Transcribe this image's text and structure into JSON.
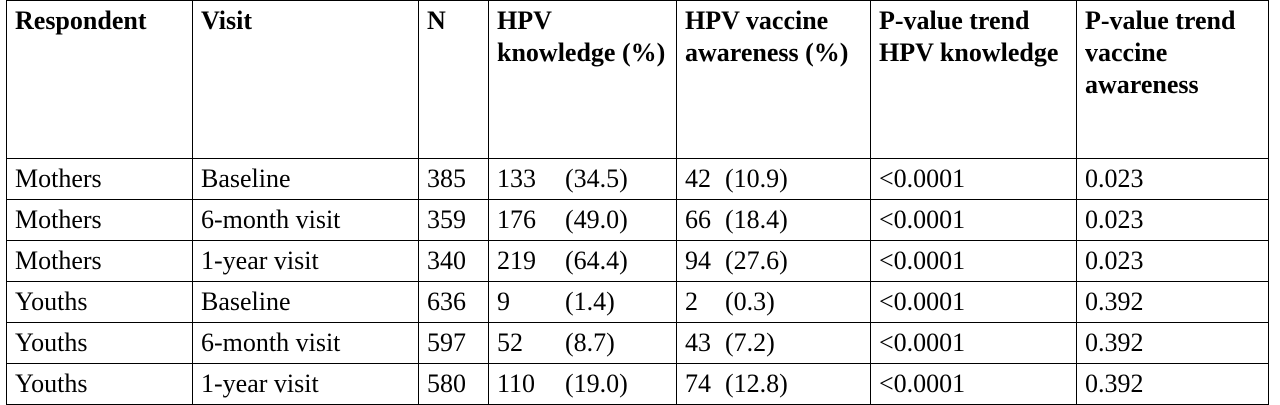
{
  "table": {
    "headers": [
      "Respondent",
      "Visit",
      "N",
      "HPV knowledge (%)",
      "HPV vaccine awareness (%)",
      "P-value trend HPV knowledge",
      "P-value trend vaccine awareness"
    ],
    "rows": [
      {
        "respondent": "Mothers",
        "visit": "Baseline",
        "n": "385",
        "knowledge_n": "133",
        "knowledge_pct": "(34.5)",
        "awareness_n": "42",
        "awareness_pct": "(10.9)",
        "p_knowledge": "<0.0001",
        "p_awareness": "0.023"
      },
      {
        "respondent": "Mothers",
        "visit": "6-month visit",
        "n": "359",
        "knowledge_n": "176",
        "knowledge_pct": "(49.0)",
        "awareness_n": "66",
        "awareness_pct": "(18.4)",
        "p_knowledge": "<0.0001",
        "p_awareness": "0.023"
      },
      {
        "respondent": "Mothers",
        "visit": "1-year visit",
        "n": "340",
        "knowledge_n": "219",
        "knowledge_pct": "(64.4)",
        "awareness_n": "94",
        "awareness_pct": "(27.6)",
        "p_knowledge": "<0.0001",
        "p_awareness": "0.023"
      },
      {
        "respondent": "Youths",
        "visit": "Baseline",
        "n": "636",
        "knowledge_n": "9",
        "knowledge_pct": "(1.4)",
        "awareness_n": "2",
        "awareness_pct": "(0.3)",
        "p_knowledge": "<0.0001",
        "p_awareness": "0.392"
      },
      {
        "respondent": "Youths",
        "visit": "6-month visit",
        "n": "597",
        "knowledge_n": "52",
        "knowledge_pct": "(8.7)",
        "awareness_n": "43",
        "awareness_pct": "(7.2)",
        "p_knowledge": "<0.0001",
        "p_awareness": "0.392"
      },
      {
        "respondent": "Youths",
        "visit": "1-year visit",
        "n": "580",
        "knowledge_n": "110",
        "knowledge_pct": "(19.0)",
        "awareness_n": "74",
        "awareness_pct": "(12.8)",
        "p_knowledge": "<0.0001",
        "p_awareness": "0.392"
      }
    ]
  }
}
